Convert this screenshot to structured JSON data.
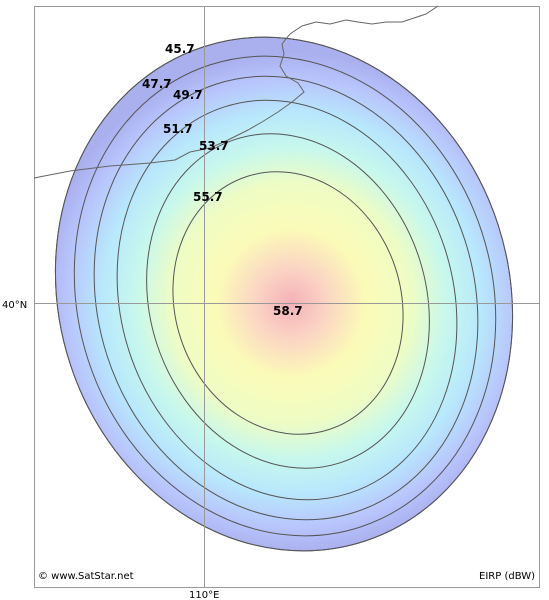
{
  "map": {
    "latitude_label": "40°N",
    "longitude_label": "110°E",
    "copyright": "© www.SatStar.net",
    "legend_unit": "EIRP (dBW)",
    "colors": {
      "outer": "#aab0ee",
      "blue": "#b8c8ff",
      "cyan": "#b8f2f4",
      "light_cyan": "#d8fbe8",
      "yellow": "#fbfbb8",
      "peak": "#f4b8bc",
      "contour": "#555555",
      "grid": "#999999",
      "coast": "#666666"
    },
    "contours": [
      {
        "value": 45.7,
        "label": "45.7"
      },
      {
        "value": 47.7,
        "label": "47.7"
      },
      {
        "value": 49.7,
        "label": "49.7"
      },
      {
        "value": 51.7,
        "label": "51.7"
      },
      {
        "value": 53.7,
        "label": "53.7"
      },
      {
        "value": 55.7,
        "label": "55.7"
      }
    ],
    "peak": {
      "value": 58.7,
      "label": "58.7"
    }
  }
}
